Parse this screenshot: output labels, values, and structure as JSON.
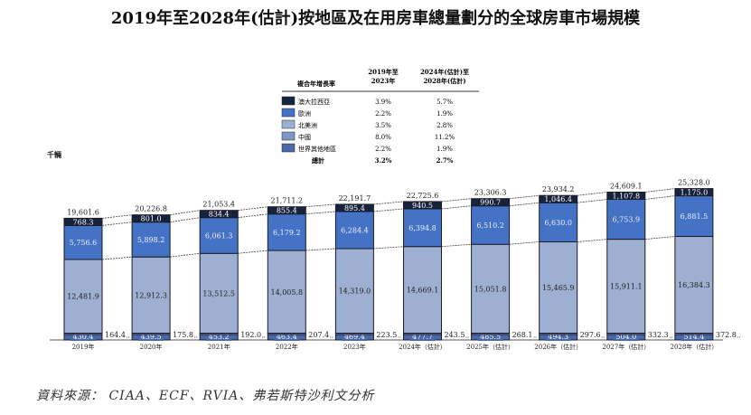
{
  "title": "2019年至2028年(估計)按地區及在用房車總量劃分的全球房車市場規模",
  "unit": "千輛",
  "source": "資料來源： CIAA、ECF、RVIA、弗若斯特沙利文分析",
  "chart_data": {
    "type": "bar",
    "stacked": true,
    "title": "2019年至2028年(估計)按地區及在用房車總量劃分的全球房車市場規模",
    "ylabel": "千輛",
    "categories": [
      "2019年",
      "2020年",
      "2021年",
      "2022年",
      "2023年",
      "2024年（估計）",
      "2025年（估計）",
      "2026年（估計）",
      "2027年（估計）",
      "2028年（估計）"
    ],
    "series": [
      {
        "name": "世界其他地區",
        "color": "#4a69a8",
        "values": [
          430.4,
          439.5,
          453.2,
          463.4,
          469.4,
          477.7,
          485.5,
          494.3,
          504.0,
          514.4
        ]
      },
      {
        "name": "中國",
        "color": "#7f96c8",
        "values": [
          164.4,
          175.8,
          192.0,
          207.4,
          223.5,
          243.5,
          268.1,
          297.6,
          332.3,
          372.8
        ]
      },
      {
        "name": "北美洲",
        "color": "#9db0d2",
        "values": [
          12481.9,
          12912.3,
          13512.5,
          14005.8,
          14319.0,
          14669.1,
          15051.8,
          15465.9,
          15911.1,
          16384.3
        ]
      },
      {
        "name": "歐洲",
        "color": "#4472c4",
        "values": [
          5756.6,
          5898.2,
          6061.3,
          6179.2,
          6284.4,
          6394.8,
          6510.2,
          6630.0,
          6753.9,
          6881.5
        ]
      },
      {
        "name": "澳大拉西亞",
        "color": "#17223b",
        "values": [
          768.3,
          801.0,
          834.4,
          855.4,
          895.4,
          940.5,
          990.7,
          1046.4,
          1107.8,
          1175.0
        ]
      }
    ],
    "totals": [
      "19,601.6",
      "20,226.8",
      "21,053.4",
      "21,711.2",
      "22,191.7",
      "22,725.6",
      "23,306.3",
      "23,934.2",
      "24,609.1",
      "25,328.0"
    ],
    "labels": {
      "世界其他地區": [
        "430.4",
        "439.5",
        "453.2",
        "463.4",
        "469.4",
        "477.7",
        "485.5",
        "494.3",
        "504.0",
        "514.4"
      ],
      "中國": [
        "164.4",
        "175.8",
        "192.0",
        "207.4",
        "223.5",
        "243.5",
        "268.1",
        "297.6",
        "332.3",
        "372.8"
      ],
      "北美洲": [
        "12,481.9",
        "12,912.3",
        "13,512.5",
        "14,005.8",
        "14,319.0",
        "14,669.1",
        "15,051.8",
        "15,465.9",
        "15,911.1",
        "16,384.3"
      ],
      "歐洲": [
        "5,756.6",
        "5,898.2",
        "6,061.3",
        "6,179.2",
        "6,284.4",
        "6,394.8",
        "6,510.2",
        "6,630.0",
        "6,753.9",
        "6,881.5"
      ],
      "澳大拉西亞": [
        "768.3",
        "801.0",
        "834.4",
        "855.4",
        "895.4",
        "940.5",
        "990.7",
        "1,046.4",
        "1,107.8",
        "1,175.0"
      ]
    },
    "cagr_table": {
      "header": [
        "複合年增長率",
        "2019年至\n2023年",
        "2024年(估計)至\n2028年(估計)"
      ],
      "rows": [
        {
          "name": "澳大拉西亞",
          "color": "#17223b",
          "a": "3.9%",
          "b": "5.7%"
        },
        {
          "name": "歐洲",
          "color": "#4472c4",
          "a": "2.2%",
          "b": "1.9%"
        },
        {
          "name": "北美洲",
          "color": "#9db0d2",
          "a": "3.5%",
          "b": "2.8%"
        },
        {
          "name": "中國",
          "color": "#7f96c8",
          "a": "8.0%",
          "b": "11.2%"
        },
        {
          "name": "世界其他地區",
          "color": "#4a69a8",
          "a": "2.2%",
          "b": "1.9%"
        }
      ],
      "total": {
        "name": "總計",
        "a": "3.2%",
        "b": "2.7%"
      }
    },
    "legend_placement": "top-center"
  }
}
